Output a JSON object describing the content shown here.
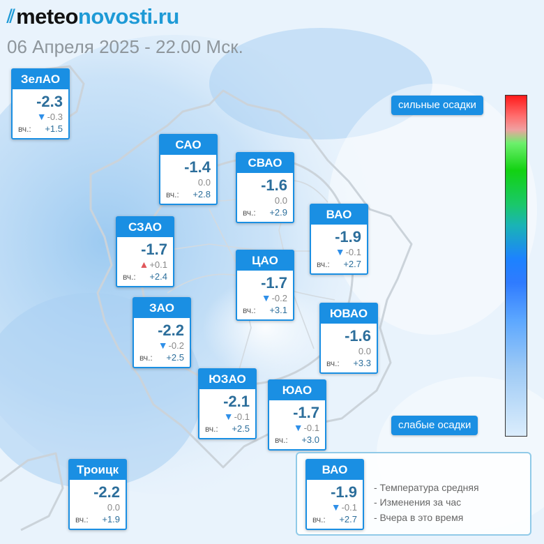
{
  "header": {
    "logo_mark": "⫽",
    "logo_part1": "meteo",
    "logo_part2": "novosti.ru",
    "datetime": "06 Апреля 2025 - 22.00 Мск."
  },
  "yesterday_label": "вч.:",
  "districts": [
    {
      "name": "ЗелАО",
      "temp": "-2.3",
      "trend": "down",
      "change": "-0.3",
      "yesterday": "+1.5"
    },
    {
      "name": "САО",
      "temp": "-1.4",
      "trend": "none",
      "change": "0.0",
      "yesterday": "+2.8"
    },
    {
      "name": "СВАО",
      "temp": "-1.6",
      "trend": "none",
      "change": "0.0",
      "yesterday": "+2.9"
    },
    {
      "name": "ВАО",
      "temp": "-1.9",
      "trend": "down",
      "change": "-0.1",
      "yesterday": "+2.7"
    },
    {
      "name": "СЗАО",
      "temp": "-1.7",
      "trend": "up",
      "change": "+0.1",
      "yesterday": "+2.4"
    },
    {
      "name": "ЦАО",
      "temp": "-1.7",
      "trend": "down",
      "change": "-0.2",
      "yesterday": "+3.1"
    },
    {
      "name": "ЗАО",
      "temp": "-2.2",
      "trend": "down",
      "change": "-0.2",
      "yesterday": "+2.5"
    },
    {
      "name": "ЮВАО",
      "temp": "-1.6",
      "trend": "none",
      "change": "0.0",
      "yesterday": "+3.3"
    },
    {
      "name": "ЮЗАО",
      "temp": "-2.1",
      "trend": "down",
      "change": "-0.1",
      "yesterday": "+2.5"
    },
    {
      "name": "ЮАО",
      "temp": "-1.7",
      "trend": "down",
      "change": "-0.1",
      "yesterday": "+3.0"
    },
    {
      "name": "Троицк",
      "temp": "-2.2",
      "trend": "none",
      "change": "0.0",
      "yesterday": "+1.9"
    }
  ],
  "precip_scale": {
    "top_label": "сильные осадки",
    "bottom_label": "слабые осадки",
    "colors": [
      "#ff1a1a",
      "#12d212",
      "#1c82ff",
      "#dbedfc"
    ]
  },
  "legend": {
    "sample": {
      "name": "ВАО",
      "temp": "-1.9",
      "trend": "down",
      "change": "-0.1",
      "yesterday": "+2.7"
    },
    "line1": "- Температура средняя",
    "line2": "- Изменения за час",
    "line3": "- Вчера в это время"
  }
}
